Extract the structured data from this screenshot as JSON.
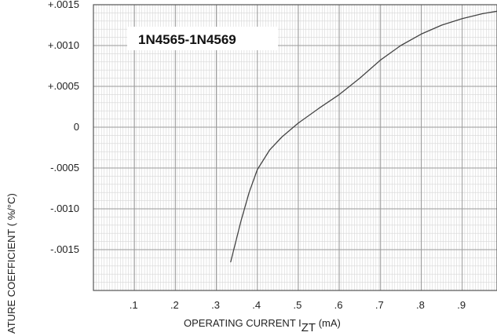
{
  "chart_data": {
    "type": "line",
    "title": "1N4565-1N4569",
    "xlabel": {
      "main": "OPERATING CURRENT I",
      "subscript": "ZT",
      "unit": " (mA)"
    },
    "ylabel": "ATURE COEFFICIENT ( %/°C)",
    "xlim": [
      0.0,
      0.985
    ],
    "ylim": [
      -0.002,
      0.0015
    ],
    "x_ticks": [
      {
        "value": 0.1,
        "label": ".1"
      },
      {
        "value": 0.2,
        "label": ".2"
      },
      {
        "value": 0.3,
        "label": ".3"
      },
      {
        "value": 0.4,
        "label": ".4"
      },
      {
        "value": 0.5,
        "label": ".5"
      },
      {
        "value": 0.6,
        "label": ".6"
      },
      {
        "value": 0.7,
        "label": ".7"
      },
      {
        "value": 0.8,
        "label": ".8"
      },
      {
        "value": 0.9,
        "label": ".9"
      }
    ],
    "y_ticks": [
      {
        "value": 0.0015,
        "label": "+.0015"
      },
      {
        "value": 0.001,
        "label": "+.0010"
      },
      {
        "value": 0.0005,
        "label": "+.0005"
      },
      {
        "value": 0.0,
        "label": "0"
      },
      {
        "value": -0.0005,
        "label": "-.0005"
      },
      {
        "value": -0.001,
        "label": "-.0010"
      },
      {
        "value": -0.0015,
        "label": "-.0015"
      }
    ],
    "grid": true,
    "series": [
      {
        "x": [
          0.335,
          0.36,
          0.38,
          0.4,
          0.43,
          0.46,
          0.5,
          0.55,
          0.6,
          0.65,
          0.7,
          0.75,
          0.8,
          0.85,
          0.9,
          0.95,
          0.985
        ],
        "y": [
          -0.00165,
          -0.00115,
          -0.0008,
          -0.00052,
          -0.00028,
          -0.00012,
          5e-05,
          0.00023,
          0.0004,
          0.0006,
          0.00082,
          0.001,
          0.00114,
          0.00125,
          0.00133,
          0.00139,
          0.00142
        ]
      }
    ],
    "colors": {
      "line": "#444444",
      "grid_major": "#9a9a9a",
      "grid_minor": "#d6d6d6",
      "background": "#ffffff"
    }
  }
}
